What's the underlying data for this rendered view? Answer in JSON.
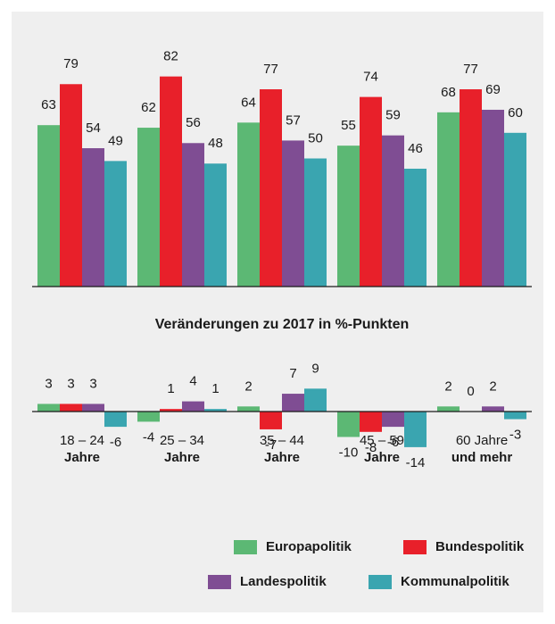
{
  "chart_data": [
    {
      "type": "bar",
      "series": [
        {
          "color": "#5cb874",
          "values": [
            63,
            62,
            64,
            55,
            68
          ]
        },
        {
          "color": "#e8202a",
          "values": [
            79,
            82,
            77,
            74,
            77
          ]
        },
        {
          "color": "#7f4d93",
          "values": [
            54,
            56,
            57,
            59,
            69
          ]
        },
        {
          "color": "#3aa5b0",
          "values": [
            49,
            48,
            50,
            46,
            60
          ]
        }
      ],
      "ylim": [
        0,
        100
      ]
    },
    {
      "type": "bar",
      "title": "Veränderungen zu 2017 in %-Punkten",
      "categories": [
        [
          "18 – 24",
          "Jahre"
        ],
        [
          "25 – 34",
          "Jahre"
        ],
        [
          "35 – 44",
          "Jahre"
        ],
        [
          "45 – 59",
          "Jahre"
        ],
        [
          "60 Jahre",
          "und mehr"
        ]
      ],
      "series": [
        {
          "name": "Europapolitik",
          "color": "#5cb874",
          "values": [
            3,
            -4,
            2,
            -10,
            2
          ]
        },
        {
          "name": "Bundespolitik",
          "color": "#e8202a",
          "values": [
            3,
            1,
            -7,
            -8,
            0
          ]
        },
        {
          "name": "Landespolitik",
          "color": "#7f4d93",
          "values": [
            3,
            4,
            7,
            -6,
            2
          ]
        },
        {
          "name": "Kommunalpolitik",
          "color": "#3aa5b0",
          "values": [
            -6,
            1,
            9,
            -14,
            -3
          ]
        }
      ],
      "ylim": [
        -20,
        20
      ]
    }
  ]
}
